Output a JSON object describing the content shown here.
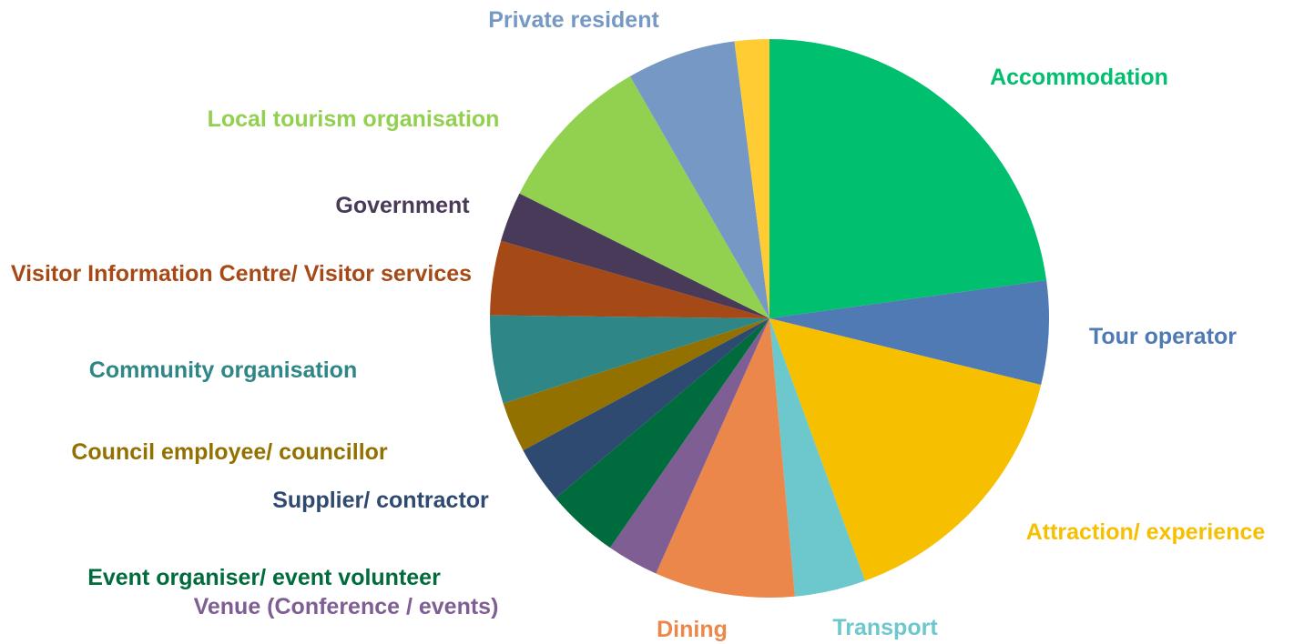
{
  "chart_data": {
    "type": "pie",
    "categories": [
      "Accommodation",
      "Tour operator",
      "Attraction/ experience",
      "Transport",
      "Dining",
      "Venue (Conference / events)",
      "Event organiser/ event volunteer",
      "Supplier/ contractor",
      "Council employee/ councillor",
      "Community organisation",
      "Visitor Information Centre/ Visitor services",
      "Government",
      "Local tourism organisation",
      "Private resident",
      null
    ],
    "values": [
      22.8,
      6.0,
      15.6,
      4.1,
      8.1,
      3.0,
      4.2,
      3.3,
      2.9,
      5.1,
      4.3,
      2.9,
      9.3,
      6.3,
      2.0
    ],
    "colors": [
      "#00bf6f",
      "#4f7ab4",
      "#f6bf00",
      "#6cc8cc",
      "#eb874a",
      "#7e5e93",
      "#006b3c",
      "#2f4a70",
      "#937100",
      "#2e8686",
      "#a54a16",
      "#4a3a5a",
      "#92d050",
      "#7698c4",
      "#ffcc33"
    ]
  }
}
